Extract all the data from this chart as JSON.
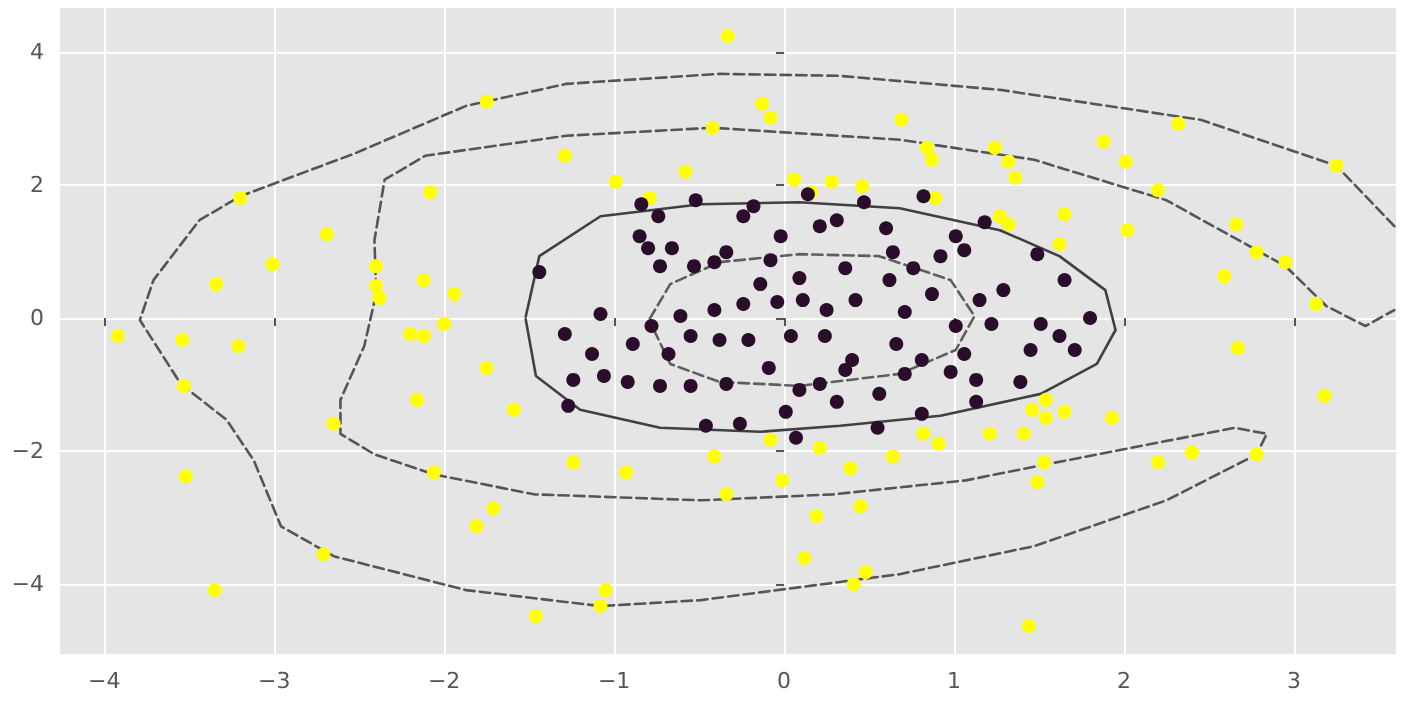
{
  "chart_data": {
    "type": "scatter",
    "xlim": [
      -4.26,
      3.6
    ],
    "ylim": [
      -5.05,
      4.66
    ],
    "xticks": [
      -4,
      -3,
      -2,
      -1,
      0,
      1,
      2,
      3
    ],
    "yticks": [
      -4,
      -2,
      0,
      2,
      4
    ],
    "grid": true,
    "series": [
      {
        "type": "line",
        "color": "#555555",
        "line_style": "dashed",
        "marker": "none",
        "x": [
          3.59,
          3.25,
          2.45,
          1.27,
          0.33,
          -0.38,
          -1.28,
          -1.87,
          -2.53,
          -3.2,
          -3.44,
          -3.71,
          -3.79,
          -3.55,
          -3.28,
          -3.12,
          -2.96,
          -2.65,
          -1.87,
          -1.08,
          -0.49,
          0.68,
          1.47,
          2.25,
          2.78,
          2.84,
          2.65,
          1.54,
          1.07,
          0.29,
          -0.49,
          -1.47,
          -2.06,
          -2.41,
          -2.61,
          -2.61,
          -2.47,
          -2.4,
          -2.41,
          -2.35,
          -2.11,
          -1.28,
          -0.42,
          0.68,
          1.47,
          2.25,
          2.95,
          3.19,
          3.42,
          3.59
        ],
        "values": [
          1.38,
          2.29,
          2.98,
          3.43,
          3.64,
          3.67,
          3.52,
          3.19,
          2.47,
          1.83,
          1.47,
          0.57,
          -0.03,
          -0.99,
          -1.53,
          -2.14,
          -3.13,
          -3.58,
          -4.09,
          -4.33,
          -4.24,
          -3.85,
          -3.43,
          -2.74,
          -2.05,
          -1.74,
          -1.65,
          -2.2,
          -2.44,
          -2.65,
          -2.74,
          -2.65,
          -2.35,
          -2.05,
          -1.74,
          -1.23,
          -0.42,
          0.36,
          1.17,
          2.08,
          2.44,
          2.74,
          2.86,
          2.68,
          2.38,
          1.77,
          0.78,
          0.18,
          -0.12,
          0.12
        ]
      },
      {
        "type": "line",
        "color": "#404040",
        "line_style": "solid",
        "marker": "none",
        "x": [
          -1.52,
          -1.44,
          -1.08,
          -0.49,
          0.09,
          0.68,
          1.27,
          1.62,
          1.89,
          1.95,
          1.84,
          1.51,
          0.92,
          0.33,
          -0.14,
          -0.73,
          -1.2,
          -1.46,
          -1.52
        ],
        "values": [
          0.02,
          0.93,
          1.53,
          1.71,
          1.74,
          1.65,
          1.32,
          0.93,
          0.42,
          -0.18,
          -0.69,
          -1.14,
          -1.47,
          -1.62,
          -1.71,
          -1.65,
          -1.38,
          -0.87,
          -0.02
        ]
      },
      {
        "type": "line",
        "color": "#5e5e5e",
        "line_style": "dashed",
        "marker": "none",
        "x": [
          -0.79,
          -0.67,
          -0.38,
          0.09,
          0.56,
          0.98,
          1.12,
          1.01,
          0.68,
          0.09,
          -0.38,
          -0.67,
          -0.79
        ],
        "values": [
          -0.01,
          0.51,
          0.84,
          0.96,
          0.93,
          0.57,
          0.03,
          -0.48,
          -0.84,
          -1.02,
          -0.96,
          -0.69,
          -0.05
        ]
      },
      {
        "type": "scatter",
        "color": "#ffff00",
        "marker": "circle",
        "x": [
          -0.33,
          -1.75,
          -0.13,
          -0.08,
          0.69,
          -0.42,
          1.88,
          2.01,
          2.32,
          3.25,
          0.06,
          0.16,
          0.28,
          0.46,
          0.84,
          0.87,
          1.24,
          1.32,
          1.36,
          0.89,
          1.27,
          1.32,
          1.65,
          1.62,
          2.02,
          2.2,
          2.66,
          2.78,
          2.95,
          2.59,
          3.13,
          2.67,
          -1.29,
          -0.99,
          -0.79,
          -0.58,
          -2.08,
          -3.2,
          -2.69,
          -3.01,
          -3.34,
          -2.4,
          -2.4,
          -2.38,
          -2.12,
          -1.94,
          -3.92,
          -3.54,
          -3.21,
          -2.2,
          -2.12,
          -2.0,
          -3.53,
          -1.75,
          -2.16,
          -1.59,
          -2.65,
          -2.06,
          -3.52,
          -1.24,
          -0.93,
          -1.71,
          -1.81,
          -2.71,
          -3.35,
          -1.05,
          -1.08,
          -1.46,
          3.18,
          1.46,
          1.54,
          1.65,
          1.93,
          1.54,
          0.82,
          0.91,
          1.21,
          1.41,
          -0.08,
          0.21,
          -0.41,
          0.64,
          0.39,
          -0.01,
          -0.34,
          1.53,
          1.49,
          2.2,
          2.4,
          2.78,
          0.19,
          0.45,
          0.12,
          0.48,
          0.41,
          1.44
        ],
        "values": [
          4.24,
          3.25,
          3.22,
          3.01,
          2.98,
          2.86,
          2.65,
          2.35,
          2.92,
          2.29,
          2.08,
          1.89,
          2.05,
          1.98,
          2.56,
          2.38,
          2.56,
          2.35,
          2.11,
          1.8,
          1.53,
          1.41,
          1.56,
          1.11,
          1.32,
          1.92,
          1.41,
          0.99,
          0.84,
          0.63,
          0.21,
          -0.45,
          2.44,
          2.05,
          1.8,
          2.2,
          1.89,
          1.8,
          1.26,
          0.81,
          0.51,
          0.78,
          0.48,
          0.3,
          0.57,
          0.36,
          -0.27,
          -0.33,
          -0.42,
          -0.24,
          -0.27,
          -0.09,
          -1.02,
          -0.75,
          -1.23,
          -1.38,
          -1.59,
          -2.32,
          -2.38,
          -2.17,
          -2.32,
          -2.86,
          -3.13,
          -3.55,
          -4.09,
          -4.09,
          -4.33,
          -4.48,
          -1.17,
          -1.38,
          -1.23,
          -1.41,
          -1.5,
          -1.5,
          -1.74,
          -1.89,
          -1.74,
          -1.74,
          -1.83,
          -1.95,
          -2.08,
          -2.08,
          -2.26,
          -2.44,
          -2.65,
          -2.17,
          -2.47,
          -2.17,
          -2.02,
          -2.05,
          -2.98,
          -2.83,
          -3.61,
          -3.82,
          -4.0,
          -4.63
        ]
      },
      {
        "color": "#2a0c2b",
        "marker": "circle",
        "x": [
          -1.44,
          -0.84,
          -0.52,
          -0.18,
          0.14,
          0.47,
          0.82,
          -0.24,
          -0.02,
          0.21,
          0.31,
          0.6,
          1.01,
          1.06,
          1.18,
          1.49,
          -0.74,
          -0.85,
          -0.8,
          -0.66,
          -0.73,
          -0.53,
          -0.41,
          -0.34,
          -0.08,
          -0.14,
          0.09,
          0.36,
          0.64,
          0.76,
          0.92,
          0.62,
          0.87,
          1.15,
          1.29,
          1.65,
          1.8,
          -1.08,
          -0.78,
          -0.61,
          -0.41,
          -0.24,
          -0.04,
          0.11,
          0.25,
          0.42,
          0.71,
          1.01,
          1.22,
          1.51,
          1.62,
          -1.29,
          -1.13,
          -0.89,
          -0.68,
          -0.55,
          -0.38,
          -0.21,
          -0.09,
          0.04,
          0.24,
          0.4,
          0.66,
          0.81,
          1.06,
          1.45,
          1.71,
          -1.24,
          -1.06,
          -0.92,
          -0.73,
          -0.55,
          -0.34,
          0.09,
          0.21,
          0.56,
          0.71,
          0.98,
          1.13,
          -1.27,
          -0.46,
          -0.26,
          0.07,
          0.55,
          0.81,
          1.13,
          1.39,
          0.01,
          0.31,
          0.36
        ],
        "values": [
          0.69,
          1.71,
          1.77,
          1.68,
          1.86,
          1.74,
          1.83,
          1.53,
          1.23,
          1.38,
          1.47,
          1.35,
          1.23,
          1.02,
          1.44,
          0.96,
          1.53,
          1.23,
          1.05,
          1.05,
          0.78,
          0.78,
          0.84,
          0.99,
          0.87,
          0.51,
          0.6,
          0.75,
          0.99,
          0.75,
          0.93,
          0.57,
          0.36,
          0.27,
          0.42,
          0.57,
          0.0,
          0.06,
          -0.12,
          0.03,
          0.12,
          0.21,
          0.24,
          0.27,
          0.12,
          0.27,
          0.09,
          -0.12,
          -0.09,
          -0.09,
          -0.27,
          -0.24,
          -0.54,
          -0.39,
          -0.54,
          -0.27,
          -0.33,
          -0.33,
          -0.75,
          -0.27,
          -0.27,
          -0.63,
          -0.39,
          -0.63,
          -0.54,
          -0.48,
          -0.48,
          -0.93,
          -0.87,
          -0.96,
          -1.02,
          -1.02,
          -0.99,
          -1.08,
          -0.99,
          -1.14,
          -0.84,
          -0.81,
          -0.93,
          -1.32,
          -1.62,
          -1.59,
          -1.8,
          -1.65,
          -1.44,
          -1.26,
          -0.96,
          -1.41,
          -1.26,
          -0.78
        ]
      }
    ]
  }
}
